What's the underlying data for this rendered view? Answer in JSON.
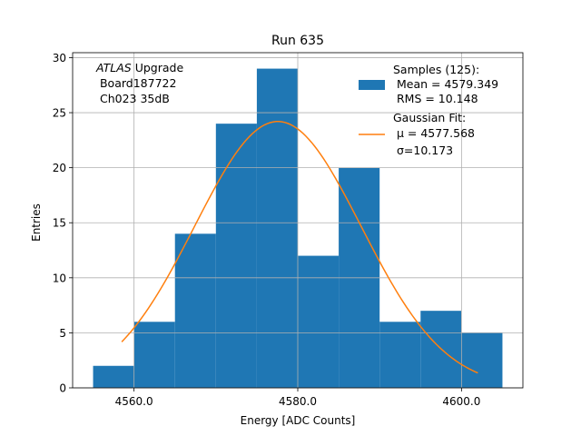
{
  "chart_data": {
    "type": "bar",
    "title": "Run 635",
    "xlabel": "Energy [ADC Counts]",
    "ylabel": "Entries",
    "xlim": [
      4552.5,
      4607.5
    ],
    "ylim": [
      0,
      30.45
    ],
    "x_ticks": [
      4560.0,
      4580.0,
      4600.0
    ],
    "x_tick_labels": [
      "4560.0",
      "4580.0",
      "4600.0"
    ],
    "y_ticks": [
      0,
      5,
      10,
      15,
      20,
      25,
      30
    ],
    "y_tick_labels": [
      "0",
      "5",
      "10",
      "15",
      "20",
      "25",
      "30"
    ],
    "grid": true,
    "bins": {
      "edges": [
        4555,
        4560,
        4565,
        4570,
        4575,
        4580,
        4585,
        4590,
        4595,
        4600,
        4605
      ],
      "counts": [
        2,
        6,
        14,
        24,
        29,
        12,
        20,
        6,
        7,
        5
      ],
      "color": "#1f77b4"
    },
    "fit": {
      "type": "gaussian",
      "amplitude": 24.2,
      "mu": 4577.568,
      "sigma": 10.173,
      "x_range": [
        4558.5,
        4602
      ],
      "color": "#ff7f0e"
    },
    "annotation": {
      "italic": "ATLAS",
      "line1_rest": " Upgrade",
      "line2": " Board187722",
      "line3": " Ch023 35dB"
    },
    "legend": {
      "placement": "top-right",
      "samples": {
        "line1": "Samples (125):",
        "line2": " Mean = 4579.349",
        "line3": " RMS = 10.148"
      },
      "fit": {
        "line1": "Gaussian Fit:",
        "line2": " μ = 4577.568",
        "line3": " σ=10.173"
      }
    }
  }
}
